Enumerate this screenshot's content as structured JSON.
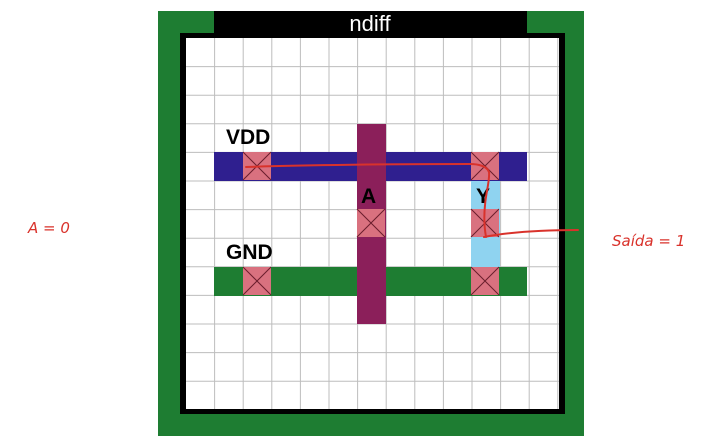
{
  "diagram": {
    "title": "ndiff",
    "labels": {
      "vdd": "VDD",
      "gnd": "GND",
      "input": "A",
      "output": "Y"
    },
    "annotations": {
      "input_state": "A = 0",
      "output_state": "Saída = 1"
    },
    "colors": {
      "ndiff_well": "#1e7d32",
      "frame": "#000000",
      "grid_line": "#bdbdbd",
      "metal_vdd": "#2f1f8f",
      "metal_gnd": "#1e7d32",
      "poly": "#8b1f5a",
      "output_metal": "#8fd3f0",
      "contact": "#d9717f",
      "annotation": "#d9322b"
    }
  }
}
